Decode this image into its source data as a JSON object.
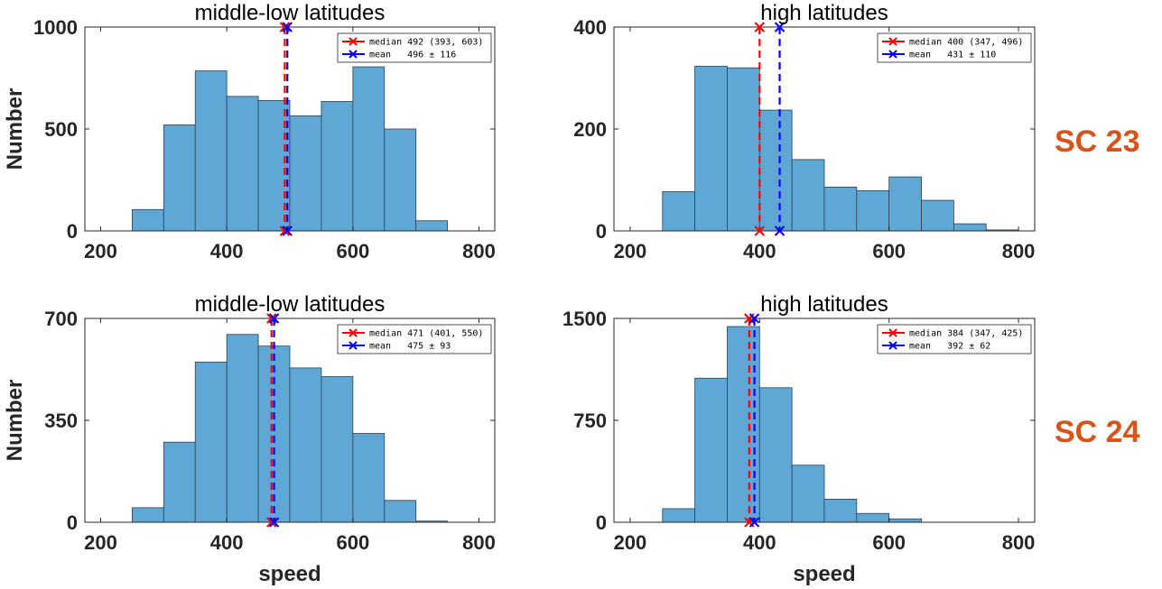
{
  "figure": {
    "row_labels": [
      "SC 23",
      "SC 24"
    ],
    "colors": {
      "bar_fill": "#5FA8D6",
      "bar_edge": "#2F3F4F",
      "median": "#FF0000",
      "mean": "#0000FF",
      "row_label": "#D95319"
    }
  },
  "chart_data": [
    {
      "type": "bar",
      "title": "middle-low latitudes",
      "xlabel": "",
      "ylabel": "Number",
      "xlim": [
        175,
        825
      ],
      "ylim": [
        0,
        1000
      ],
      "xticks": [
        200,
        400,
        600,
        800
      ],
      "yticks": [
        0,
        500,
        1000
      ],
      "bin_edges": [
        250,
        300,
        350,
        400,
        450,
        500,
        550,
        600,
        650,
        700,
        750
      ],
      "values": [
        105,
        520,
        785,
        660,
        640,
        565,
        635,
        805,
        500,
        50
      ],
      "median": {
        "value": 492,
        "label": "median 492 (393, 603)"
      },
      "mean": {
        "value": 496,
        "label": "mean   496 ± 116"
      },
      "legend_position": "top-right",
      "grid": false
    },
    {
      "type": "bar",
      "title": "high latitudes",
      "xlabel": "",
      "ylabel": "",
      "xlim": [
        175,
        825
      ],
      "ylim": [
        0,
        400
      ],
      "xticks": [
        200,
        400,
        600,
        800
      ],
      "yticks": [
        0,
        200,
        400
      ],
      "bin_edges": [
        250,
        300,
        350,
        400,
        450,
        500,
        550,
        600,
        650,
        700,
        750,
        800
      ],
      "values": [
        77,
        323,
        320,
        237,
        140,
        86,
        79,
        106,
        60,
        14,
        2
      ],
      "median": {
        "value": 400,
        "label": "median 400 (347, 496)"
      },
      "mean": {
        "value": 431,
        "label": "mean   431 ± 110"
      },
      "legend_position": "top-right",
      "grid": false
    },
    {
      "type": "bar",
      "title": "middle-low latitudes",
      "xlabel": "speed",
      "ylabel": "Number",
      "xlim": [
        175,
        825
      ],
      "ylim": [
        0,
        700
      ],
      "xticks": [
        200,
        400,
        600,
        800
      ],
      "yticks": [
        0,
        350,
        700
      ],
      "bin_edges": [
        250,
        300,
        350,
        400,
        450,
        500,
        550,
        600,
        650,
        700,
        750
      ],
      "values": [
        50,
        275,
        550,
        645,
        605,
        530,
        500,
        305,
        75,
        4
      ],
      "median": {
        "value": 471,
        "label": "median 471 (401, 550)"
      },
      "mean": {
        "value": 475,
        "label": "mean   475 ± 93"
      },
      "legend_position": "top-right",
      "grid": false
    },
    {
      "type": "bar",
      "title": "high latitudes",
      "xlabel": "speed",
      "ylabel": "",
      "xlim": [
        175,
        825
      ],
      "ylim": [
        0,
        1500
      ],
      "xticks": [
        200,
        400,
        600,
        800
      ],
      "yticks": [
        0,
        750,
        1500
      ],
      "bin_edges": [
        250,
        300,
        350,
        400,
        450,
        500,
        550,
        600,
        650
      ],
      "values": [
        100,
        1060,
        1440,
        990,
        420,
        170,
        65,
        25
      ],
      "median": {
        "value": 384,
        "label": "median 384 (347, 425)"
      },
      "mean": {
        "value": 392,
        "label": "mean   392 ± 62"
      },
      "legend_position": "top-right",
      "grid": false
    }
  ]
}
